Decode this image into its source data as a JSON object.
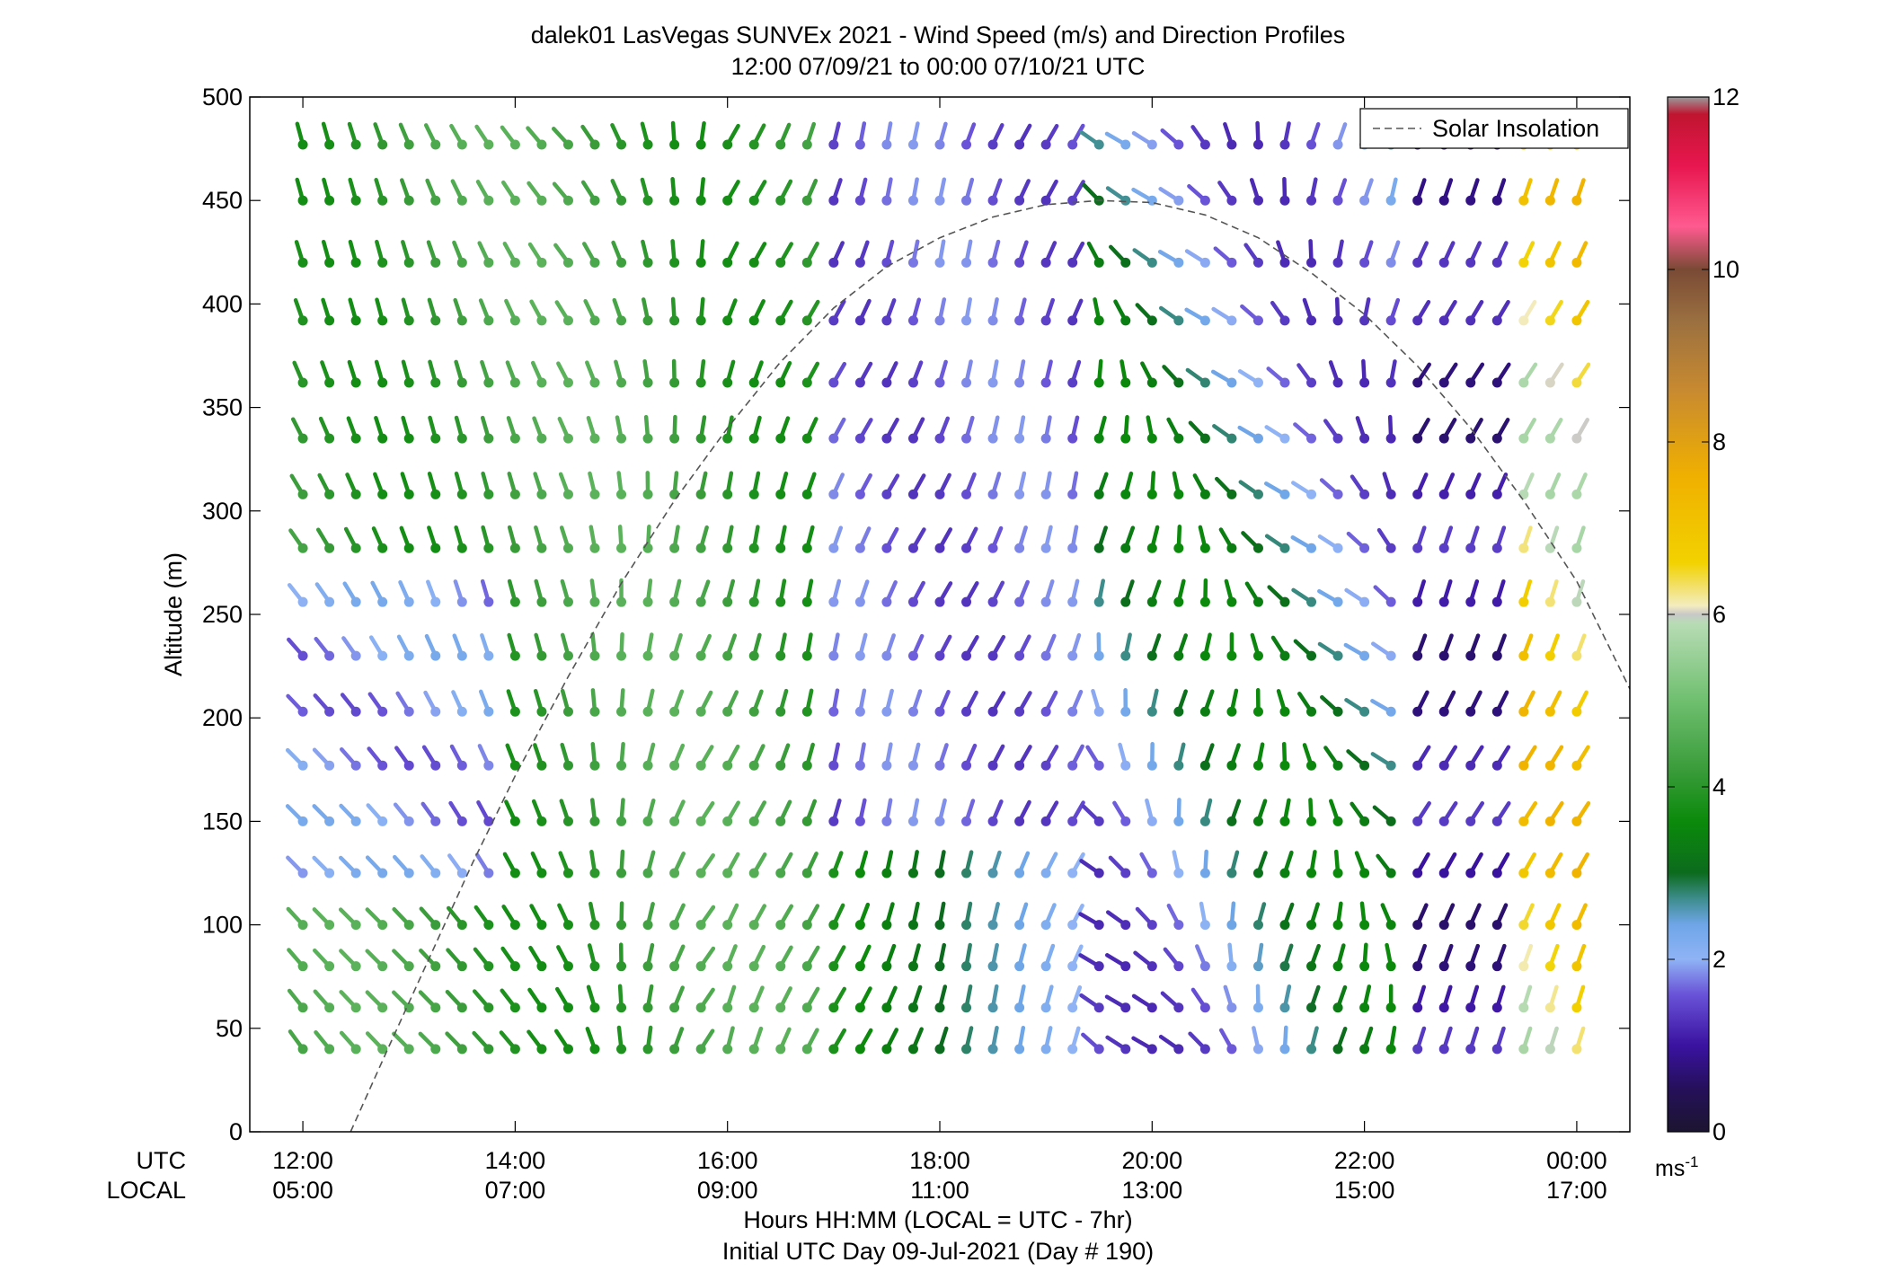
{
  "chart_data": {
    "type": "wind-profile",
    "title_line1": "dalek01 LasVegas SUNVEx 2021 - Wind Speed (m/s) and Direction Profiles",
    "title_line2": "12:00 07/09/21 to 00:00 07/10/21  UTC",
    "ylabel": "Altitude (m)",
    "xlabel_line1": "Hours HH:MM  (LOCAL = UTC - 7hr)",
    "xlabel_line2": "Initial UTC Day 09-Jul-2021 (Day # 190)",
    "utc_row_label": "UTC",
    "local_row_label": "LOCAL",
    "x_ticks_utc": [
      "12:00",
      "14:00",
      "16:00",
      "18:00",
      "20:00",
      "22:00",
      "00:00"
    ],
    "x_ticks_local": [
      "05:00",
      "07:00",
      "09:00",
      "11:00",
      "13:00",
      "15:00",
      "17:00"
    ],
    "x_tick_hours": [
      12,
      14,
      16,
      18,
      20,
      22,
      24
    ],
    "xlim_hours": [
      11.5,
      24.5
    ],
    "y_ticks": [
      "0",
      "50",
      "100",
      "150",
      "200",
      "250",
      "300",
      "350",
      "400",
      "450",
      "500"
    ],
    "ylim": [
      0,
      500
    ],
    "legend": {
      "label": "Solar Insolation",
      "placement": "top-right"
    },
    "colorbar": {
      "label": "ms",
      "label_exponent": "-1",
      "range": [
        0,
        12
      ],
      "tick_labels": [
        "0",
        "2",
        "4",
        "6",
        "8",
        "10",
        "12"
      ],
      "stops": [
        [
          0.0,
          "#1c1530"
        ],
        [
          0.5,
          "#25105a"
        ],
        [
          1.0,
          "#3a12a0"
        ],
        [
          1.6,
          "#6a54d8"
        ],
        [
          2.0,
          "#8fb3f5"
        ],
        [
          2.4,
          "#6fa6e8"
        ],
        [
          2.7,
          "#3e8d8d"
        ],
        [
          3.0,
          "#0c6b1e"
        ],
        [
          3.6,
          "#0b8a0b"
        ],
        [
          4.2,
          "#3a9c3a"
        ],
        [
          5.0,
          "#6fbf6f"
        ],
        [
          5.9,
          "#b8dcb5"
        ],
        [
          6.0,
          "#c8c8c8"
        ],
        [
          6.1,
          "#f3ecc0"
        ],
        [
          6.6,
          "#f2d200"
        ],
        [
          7.6,
          "#f0b000"
        ],
        [
          8.6,
          "#c88a30"
        ],
        [
          9.4,
          "#9b7040"
        ],
        [
          10.0,
          "#7a4a35"
        ],
        [
          10.5,
          "#ff5a90"
        ],
        [
          11.2,
          "#e8164f"
        ],
        [
          11.8,
          "#c01530"
        ],
        [
          12.0,
          "#9a9a9a"
        ]
      ]
    },
    "wind_grid": {
      "altitudes": [
        40,
        60,
        80,
        100,
        125,
        150,
        177,
        203,
        230,
        256,
        282,
        308,
        335,
        362,
        392,
        420,
        450,
        477
      ],
      "time_start_hour": 12.0,
      "time_step_hours": 0.25,
      "steps": 49
    },
    "insolation_curve": [
      [
        12.45,
        0
      ],
      [
        12.8,
        40
      ],
      [
        13.2,
        85
      ],
      [
        13.6,
        130
      ],
      [
        14.0,
        172
      ],
      [
        14.5,
        220
      ],
      [
        15.0,
        265
      ],
      [
        15.5,
        305
      ],
      [
        16.0,
        340
      ],
      [
        16.5,
        372
      ],
      [
        17.0,
        398
      ],
      [
        17.5,
        418
      ],
      [
        18.0,
        432
      ],
      [
        18.5,
        442
      ],
      [
        19.0,
        448
      ],
      [
        19.5,
        450
      ],
      [
        20.0,
        449
      ],
      [
        20.5,
        443
      ],
      [
        21.0,
        432
      ],
      [
        21.5,
        415
      ],
      [
        22.0,
        395
      ],
      [
        22.5,
        370
      ],
      [
        23.0,
        340
      ],
      [
        23.5,
        305
      ],
      [
        24.0,
        266
      ],
      [
        24.5,
        214
      ]
    ]
  }
}
